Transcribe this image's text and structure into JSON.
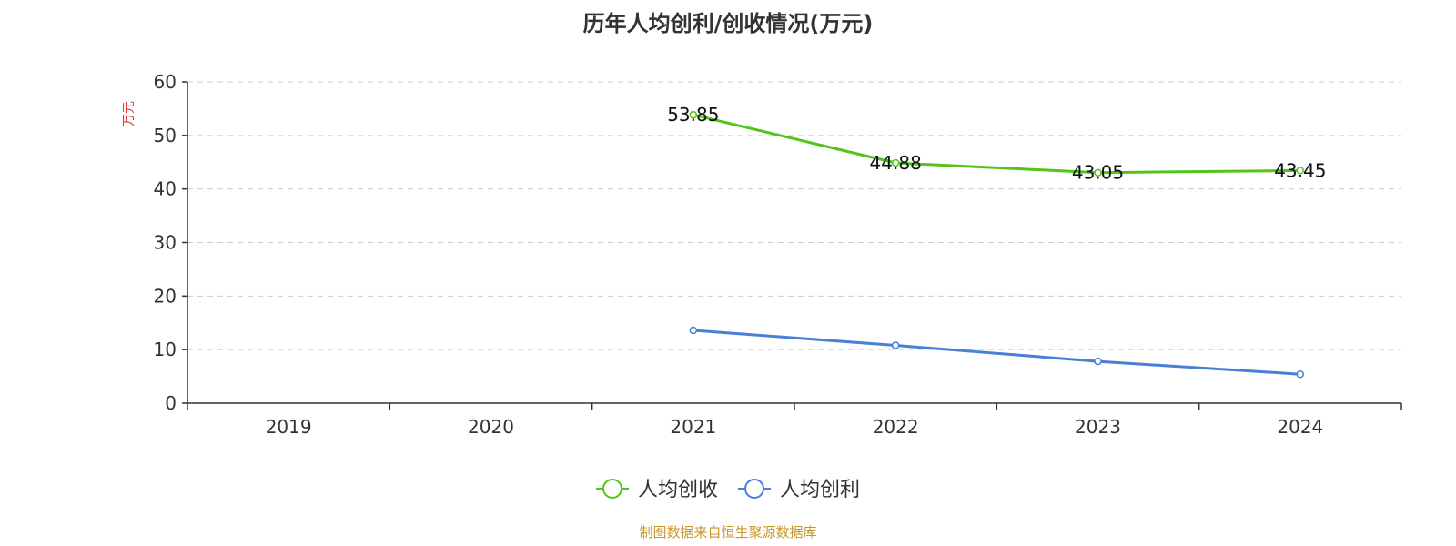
{
  "chart_data": {
    "type": "line",
    "title": "历年人均创利/创收情况(万元)",
    "ylabel": "万元",
    "xlabel": "",
    "categories": [
      "2019",
      "2020",
      "2021",
      "2022",
      "2023",
      "2024"
    ],
    "ylim": [
      0,
      60
    ],
    "yticks": [
      "0",
      "10",
      "20",
      "30",
      "40",
      "50",
      "60"
    ],
    "grid": true,
    "legend_position": "bottom",
    "series": [
      {
        "name": "人均创收",
        "color": "#52c41a",
        "values": [
          null,
          null,
          53.85,
          44.88,
          43.05,
          43.45
        ],
        "labels": [
          "",
          "",
          "53.85",
          "44.88",
          "43.05",
          "43.45"
        ]
      },
      {
        "name": "人均创利",
        "color": "#4a7fd6",
        "values": [
          null,
          null,
          13.6,
          10.8,
          7.8,
          5.4
        ],
        "labels": [
          "",
          "",
          "",
          "",
          "",
          ""
        ]
      }
    ]
  },
  "source_text": "制图数据来自恒生聚源数据库",
  "colors": {
    "ylabel": "#e53935",
    "source": "#c8962a",
    "grid": "#cccccc",
    "axis": "#333333"
  }
}
